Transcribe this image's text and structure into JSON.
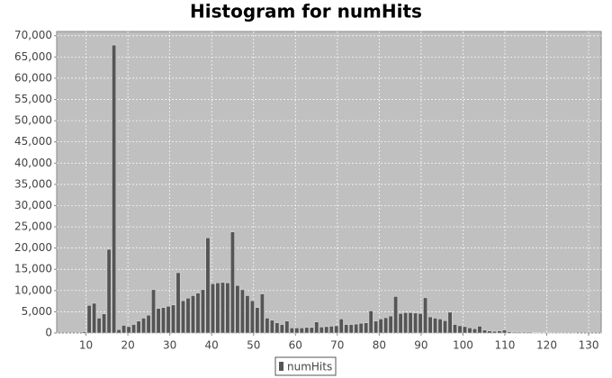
{
  "chart_data": {
    "type": "histogram",
    "title": "Histogram for numHits",
    "bins": [
      9,
      10.18,
      11.36,
      12.54,
      13.72,
      14.9,
      16.08,
      17.26,
      18.44,
      19.62,
      20.8,
      21.98,
      23.16,
      24.34,
      25.52,
      26.7,
      27.88,
      29.06,
      30.24,
      31.42,
      32.6,
      33.78,
      34.96,
      36.14,
      37.32,
      38.5,
      39.68,
      40.86,
      42.04,
      43.22,
      44.4,
      45.58,
      46.76,
      47.94,
      49.12,
      50.3,
      51.48,
      52.66,
      53.84,
      55.02,
      56.2,
      57.38,
      58.56,
      59.74,
      60.92,
      62.1,
      63.28,
      64.46,
      65.64,
      66.82,
      68,
      69.18,
      70.36,
      71.54,
      72.72,
      73.9,
      75.08,
      76.26,
      77.44,
      78.62,
      79.8,
      80.98,
      82.16,
      83.34,
      84.52,
      85.7,
      86.88,
      88.06,
      89.24,
      90.42,
      91.6,
      92.78,
      93.96,
      95.14,
      96.32,
      97.5,
      98.68,
      99.86,
      101.04,
      102.22,
      103.4,
      104.58,
      105.76,
      106.94,
      108.12,
      109.3,
      110.48,
      111.66,
      112.84,
      114.02,
      115.2,
      116.38,
      117.56,
      118.74,
      119.92,
      121.1,
      122.28,
      123.46,
      124.64,
      125.82,
      127
    ],
    "series": [
      {
        "name": "numHits",
        "color": "#555555",
        "values": [
          300,
          6500,
          7000,
          3500,
          4500,
          19700,
          67800,
          800,
          1800,
          1500,
          2000,
          2800,
          3500,
          4200,
          10200,
          5800,
          6000,
          6300,
          6600,
          14200,
          7600,
          8200,
          8800,
          9400,
          10200,
          22400,
          11600,
          11800,
          11900,
          11800,
          23800,
          11200,
          10200,
          8800,
          7600,
          6000,
          9200,
          3500,
          3000,
          2400,
          2000,
          2800,
          1200,
          1200,
          1200,
          1300,
          1300,
          2600,
          1400,
          1500,
          1600,
          1700,
          3300,
          2000,
          2000,
          2100,
          2300,
          2400,
          5200,
          2800,
          3300,
          3600,
          4000,
          8600,
          4600,
          4800,
          4800,
          4700,
          4600,
          8300,
          3800,
          3500,
          3300,
          2900,
          4900,
          2000,
          1700,
          1500,
          1200,
          1000,
          1600,
          700,
          500,
          400,
          500,
          700,
          300,
          200,
          200,
          200,
          200,
          100,
          100,
          50,
          50,
          30,
          20,
          10,
          10,
          10
        ]
      }
    ],
    "xlim": [
      3,
      133
    ],
    "xticks": [
      10,
      20,
      30,
      40,
      50,
      60,
      70,
      80,
      90,
      100,
      110,
      120,
      130
    ],
    "ylim": [
      0,
      71000
    ],
    "yticks": [
      0,
      {
        "value": 5000,
        "label": "5,000"
      },
      {
        "value": 10000,
        "label": "10,000"
      },
      {
        "value": 15000,
        "label": "15,000"
      },
      {
        "value": 20000,
        "label": "20,000"
      },
      {
        "value": 25000,
        "label": "25,000"
      },
      {
        "value": 30000,
        "label": "30,000"
      },
      {
        "value": 35000,
        "label": "35,000"
      },
      {
        "value": 40000,
        "label": "40,000"
      },
      {
        "value": 45000,
        "label": "45,000"
      },
      {
        "value": 50000,
        "label": "50,000"
      },
      {
        "value": 55000,
        "label": "55,000"
      },
      {
        "value": 60000,
        "label": "60,000"
      },
      {
        "value": 65000,
        "label": "65,000"
      },
      {
        "value": 70000,
        "label": "70,000"
      }
    ],
    "grid": true,
    "legend": "bottom"
  }
}
